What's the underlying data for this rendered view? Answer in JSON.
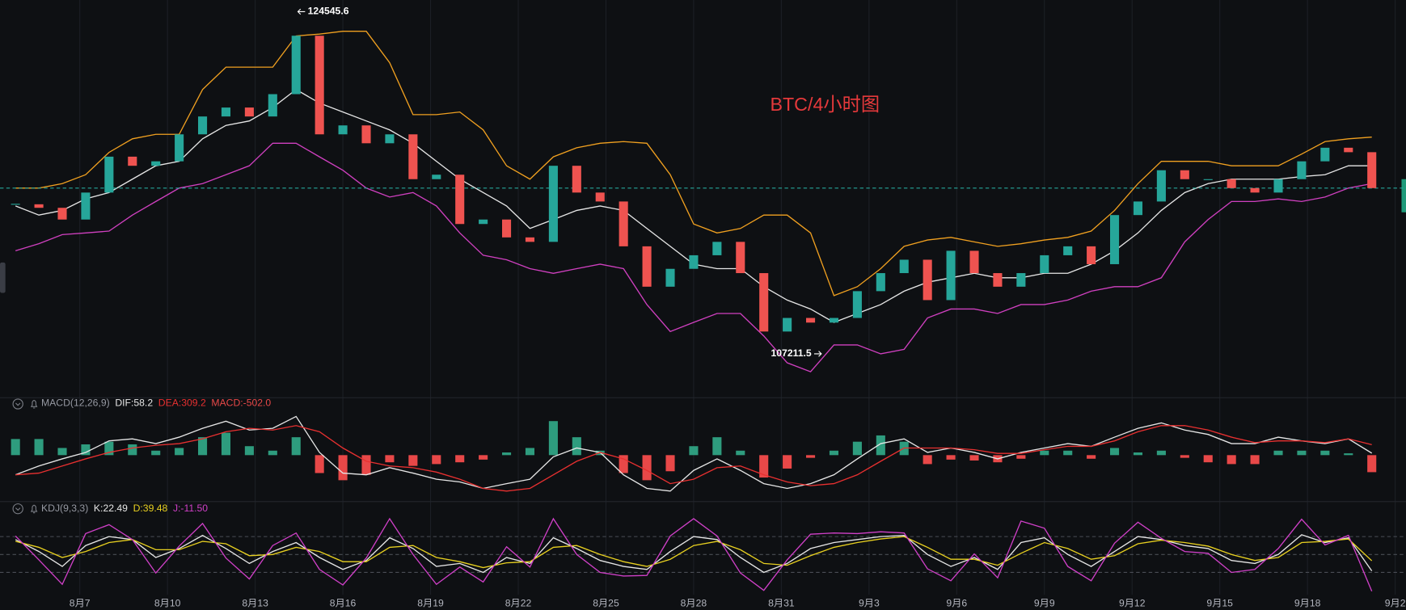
{
  "chart_data": [
    {
      "type": "candlestick",
      "title": "BTC/4小时图",
      "x": [
        4.8,
        5.6,
        6.4,
        7.2,
        8,
        8.8,
        9.6,
        10.4,
        11.2,
        12,
        12.8,
        13.6,
        14.4,
        15.2,
        16,
        16.8,
        17.6,
        18.4,
        19.2,
        20,
        20.8,
        21.6,
        22.4,
        23.2,
        24,
        24.8,
        25.6,
        26.4,
        27.2,
        28,
        28.8,
        29.6,
        30.4,
        31.2,
        32,
        32.8,
        33.6,
        34.4,
        35.2,
        36,
        36.8,
        37.6,
        38.4,
        39.2,
        40,
        40.8,
        41.6,
        42.4,
        43.2,
        44,
        44.8,
        45.6,
        46.4,
        47.2,
        48,
        48.8,
        49.6,
        50.4,
        51.2
      ],
      "values": [
        115250,
        115060,
        114430,
        115880,
        117810,
        117320,
        117560,
        119010,
        119970,
        120450,
        119970,
        121170,
        124310,
        119010,
        119490,
        118530,
        119010,
        116600,
        116840,
        114190,
        114430,
        113470,
        113230,
        117320,
        115880,
        115400,
        112990,
        110820,
        111780,
        112510,
        113230,
        111550,
        108410,
        109140,
        108890,
        109140,
        110580,
        111550,
        112270,
        110100,
        112750,
        111550,
        110820,
        111550,
        112510,
        112990,
        112030,
        114670,
        115400,
        117080,
        116600,
        116600,
        116120,
        115880,
        116600,
        117560,
        118290,
        118050,
        116120
      ],
      "up_color": "#26a69a",
      "down_color": "#ef5350",
      "price_line_color": "#26a69a",
      "series": [
        {
          "color": "#f0a020",
          "values": [
            116120,
            116120,
            116360,
            116840,
            118040,
            118770,
            119010,
            119010,
            121420,
            122620,
            122620,
            122620,
            124300,
            124400,
            124550,
            124550,
            122860,
            120070,
            120070,
            120210,
            119250,
            117320,
            116600,
            117800,
            118290,
            118530,
            118620,
            118530,
            116840,
            114190,
            113710,
            113950,
            114670,
            114670,
            113710,
            110340,
            110820,
            111790,
            112990,
            113330,
            113470,
            113230,
            112990,
            113130,
            113330,
            113470,
            113810,
            114920,
            116360,
            117560,
            117560,
            117560,
            117320,
            117320,
            117320,
            117950,
            118620,
            118770,
            118860
          ]
        },
        {
          "color": "#e6e6e6",
          "values": [
            115160,
            114670,
            114920,
            115540,
            115880,
            116600,
            117320,
            117560,
            118770,
            119490,
            119730,
            120450,
            121420,
            120690,
            120210,
            119730,
            119250,
            118530,
            117560,
            116600,
            115880,
            115160,
            113950,
            114430,
            114920,
            115160,
            114920,
            113950,
            112990,
            112030,
            111790,
            111790,
            110820,
            110100,
            109620,
            108900,
            109380,
            109860,
            110580,
            111060,
            111300,
            111540,
            111300,
            111300,
            111540,
            111540,
            112030,
            112750,
            113710,
            114920,
            115880,
            116360,
            116600,
            116600,
            116600,
            116740,
            116840,
            117320,
            117320
          ]
        },
        {
          "color": "#d040c0",
          "values": [
            112750,
            113130,
            113620,
            113710,
            113810,
            114670,
            115400,
            116120,
            116360,
            116840,
            117320,
            118530,
            118530,
            117800,
            117080,
            116120,
            115640,
            115880,
            115160,
            113710,
            112510,
            112270,
            111790,
            111540,
            111790,
            112030,
            111790,
            109860,
            108410,
            108900,
            109380,
            109380,
            108170,
            106730,
            106250,
            107690,
            107690,
            107210,
            107450,
            109140,
            109620,
            109620,
            109380,
            109860,
            109860,
            110100,
            110580,
            110820,
            110820,
            111300,
            113230,
            114430,
            115400,
            115400,
            115540,
            115400,
            115640,
            116120,
            116360
          ]
        }
      ],
      "annotations": [
        {
          "x": 14.4,
          "value": 124545.6
        },
        {
          "x": 32.43,
          "value": 107211.5
        }
      ],
      "ylim": [
        105045,
        126231
      ],
      "xlim": [
        4.27,
        52.37
      ],
      "xticks": [
        {
          "value": 7,
          "label": "8月7"
        },
        {
          "value": 10,
          "label": "8月10"
        },
        {
          "value": 13,
          "label": "8月13"
        },
        {
          "value": 16,
          "label": "8月16"
        },
        {
          "value": 19,
          "label": "8月19"
        },
        {
          "value": 22,
          "label": "8月22"
        },
        {
          "value": 25,
          "label": "8月25"
        },
        {
          "value": 28,
          "label": "8月28"
        },
        {
          "value": 31,
          "label": "8月31"
        },
        {
          "value": 34,
          "label": "9月3"
        },
        {
          "value": 37,
          "label": "9月6"
        },
        {
          "value": 40,
          "label": "9月9"
        },
        {
          "value": 43,
          "label": "9月12"
        },
        {
          "value": 46,
          "label": "9月15"
        },
        {
          "value": 49,
          "label": "9月18"
        },
        {
          "value": 52,
          "label": "9月2"
        }
      ],
      "grid": true
    },
    {
      "type": "macd",
      "title": "MACD(12,26,9)",
      "histogram": {
        "name": "MACD:-502.0",
        "up_color": "#2e9c7e",
        "down_color": "#e84848",
        "values": [
          475,
          475,
          211,
          317,
          396,
          317,
          132,
          211,
          528,
          660,
          264,
          132,
          528,
          -528,
          -739,
          -581,
          -211,
          -317,
          -264,
          -211,
          -132,
          79,
          211,
          1003,
          528,
          132,
          -528,
          -739,
          -475,
          264,
          528,
          132,
          -660,
          -396,
          -79,
          132,
          396,
          581,
          396,
          -264,
          -132,
          -158,
          -211,
          -106,
          132,
          132,
          -106,
          211,
          79,
          132,
          -79,
          -211,
          -264,
          -264,
          132,
          132,
          132,
          53,
          -502.0
        ]
      },
      "series": [
        {
          "name": "DIF:58.2",
          "color": "#e6e6e6",
          "values": [
            -580,
            -320,
            -110,
            80,
            420,
            480,
            340,
            530,
            790,
            1000,
            740,
            790,
            1140,
            80,
            -530,
            -580,
            -370,
            -530,
            -710,
            -790,
            -980,
            -840,
            -710,
            -50,
            210,
            80,
            -580,
            -980,
            -1060,
            -450,
            -110,
            -450,
            -840,
            -980,
            -840,
            -580,
            -110,
            340,
            480,
            80,
            210,
            80,
            -110,
            80,
            210,
            340,
            260,
            530,
            790,
            950,
            740,
            610,
            340,
            340,
            530,
            420,
            340,
            480,
            58.2
          ]
        },
        {
          "name": "DEA:309.2",
          "color": "#e83030",
          "values": [
            -580,
            -530,
            -320,
            -110,
            80,
            210,
            290,
            340,
            480,
            690,
            790,
            740,
            870,
            690,
            210,
            -180,
            -320,
            -370,
            -500,
            -710,
            -980,
            -1060,
            -980,
            -580,
            -180,
            80,
            -110,
            -450,
            -840,
            -710,
            -370,
            -320,
            -580,
            -790,
            -900,
            -840,
            -580,
            -180,
            210,
            210,
            210,
            160,
            50,
            50,
            160,
            260,
            260,
            420,
            690,
            870,
            870,
            740,
            530,
            370,
            420,
            420,
            370,
            480,
            309.2
          ]
        }
      ],
      "ylim": [
        -1370,
        1270
      ]
    },
    {
      "type": "line",
      "title": "KDJ(9,3,3)",
      "series": [
        {
          "name": "K:22.49",
          "color": "#e6e6e6",
          "values": [
            75,
            55,
            30,
            65,
            80,
            75,
            45,
            60,
            82,
            60,
            35,
            55,
            70,
            45,
            25,
            40,
            78,
            60,
            30,
            35,
            20,
            45,
            35,
            78,
            60,
            40,
            30,
            25,
            55,
            80,
            75,
            45,
            20,
            35,
            60,
            70,
            75,
            80,
            82,
            50,
            30,
            45,
            25,
            70,
            78,
            50,
            30,
            55,
            80,
            75,
            65,
            60,
            40,
            35,
            50,
            83,
            70,
            78,
            22.49
          ]
        },
        {
          "name": "D:39.48",
          "color": "#e8d020",
          "values": [
            72,
            62,
            45,
            55,
            70,
            75,
            58,
            58,
            72,
            68,
            48,
            50,
            62,
            55,
            38,
            38,
            62,
            65,
            45,
            38,
            28,
            36,
            38,
            62,
            65,
            50,
            38,
            30,
            42,
            65,
            72,
            58,
            35,
            32,
            48,
            62,
            70,
            76,
            80,
            62,
            42,
            42,
            32,
            52,
            70,
            60,
            42,
            48,
            68,
            74,
            70,
            64,
            50,
            40,
            45,
            70,
            72,
            76,
            39.48
          ]
        },
        {
          "name": "J:-11.50",
          "color": "#d040c8",
          "values": [
            81,
            41,
            0,
            85,
            100,
            75,
            19,
            64,
            102,
            44,
            9,
            65,
            86,
            25,
            -1,
            44,
            110,
            50,
            0,
            29,
            4,
            63,
            29,
            110,
            50,
            20,
            14,
            15,
            81,
            110,
            81,
            19,
            -10,
            41,
            84,
            86,
            85,
            88,
            86,
            26,
            6,
            51,
            11,
            106,
            94,
            30,
            6,
            69,
            104,
            77,
            55,
            52,
            20,
            25,
            60,
            109,
            66,
            82,
            -11.5
          ]
        }
      ],
      "guide_lines": [
        80,
        50,
        20
      ],
      "ylim": [
        -20,
        112
      ]
    }
  ]
}
